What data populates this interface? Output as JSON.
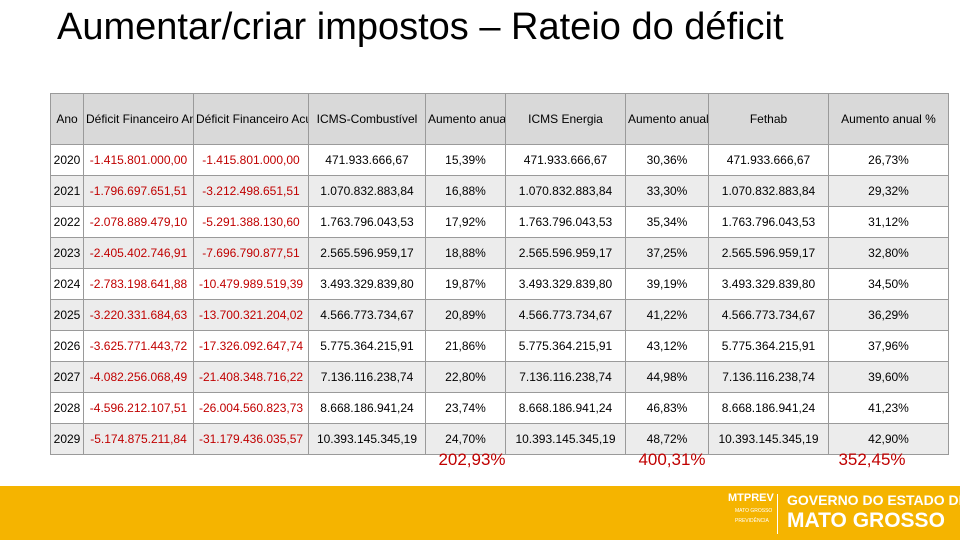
{
  "title": "Aumentar/criar impostos – Rateio do déficit",
  "table": {
    "headers": [
      "Ano",
      "Déficit Financeiro Anual",
      "Déficit Financeiro Acumulado",
      "ICMS-Combustível",
      "Aumento anual %",
      "ICMS Energia",
      "Aumento anual %",
      "Fethab",
      "Aumento anual %"
    ],
    "rows": [
      [
        "2020",
        "-1.415.801.000,00",
        "-1.415.801.000,00",
        "471.933.666,67",
        "15,39%",
        "471.933.666,67",
        "30,36%",
        "471.933.666,67",
        "26,73%"
      ],
      [
        "2021",
        "-1.796.697.651,51",
        "-3.212.498.651,51",
        "1.070.832.883,84",
        "16,88%",
        "1.070.832.883,84",
        "33,30%",
        "1.070.832.883,84",
        "29,32%"
      ],
      [
        "2022",
        "-2.078.889.479,10",
        "-5.291.388.130,60",
        "1.763.796.043,53",
        "17,92%",
        "1.763.796.043,53",
        "35,34%",
        "1.763.796.043,53",
        "31,12%"
      ],
      [
        "2023",
        "-2.405.402.746,91",
        "-7.696.790.877,51",
        "2.565.596.959,17",
        "18,88%",
        "2.565.596.959,17",
        "37,25%",
        "2.565.596.959,17",
        "32,80%"
      ],
      [
        "2024",
        "-2.783.198.641,88",
        "-10.479.989.519,39",
        "3.493.329.839,80",
        "19,87%",
        "3.493.329.839,80",
        "39,19%",
        "3.493.329.839,80",
        "34,50%"
      ],
      [
        "2025",
        "-3.220.331.684,63",
        "-13.700.321.204,02",
        "4.566.773.734,67",
        "20,89%",
        "4.566.773.734,67",
        "41,22%",
        "4.566.773.734,67",
        "36,29%"
      ],
      [
        "2026",
        "-3.625.771.443,72",
        "-17.326.092.647,74",
        "5.775.364.215,91",
        "21,86%",
        "5.775.364.215,91",
        "43,12%",
        "5.775.364.215,91",
        "37,96%"
      ],
      [
        "2027",
        "-4.082.256.068,49",
        "-21.408.348.716,22",
        "7.136.116.238,74",
        "22,80%",
        "7.136.116.238,74",
        "44,98%",
        "7.136.116.238,74",
        "39,60%"
      ],
      [
        "2028",
        "-4.596.212.107,51",
        "-26.004.560.823,73",
        "8.668.186.941,24",
        "23,74%",
        "8.668.186.941,24",
        "46,83%",
        "8.668.186.941,24",
        "41,23%"
      ],
      [
        "2029",
        "-5.174.875.211,84",
        "-31.179.436.035,57",
        "10.393.145.345,19",
        "24,70%",
        "10.393.145.345,19",
        "48,72%",
        "10.393.145.345,19",
        "42,90%"
      ]
    ]
  },
  "totals": {
    "icms_combustivel": "202,93%",
    "icms_energia": "400,31%",
    "fethab": "352,45%"
  },
  "footer": {
    "mtprev": "MTPREV",
    "mtprev_sub1": "MATO GROSSO",
    "mtprev_sub2": "PREVIDÊNCIA",
    "gov_line1": "GOVERNO DO ESTADO DE",
    "gov_line2": "MATO GROSSO"
  },
  "colors": {
    "negative": "#c00000",
    "footer_bar": "#f5b400",
    "header_bg": "#d9d9d9"
  }
}
